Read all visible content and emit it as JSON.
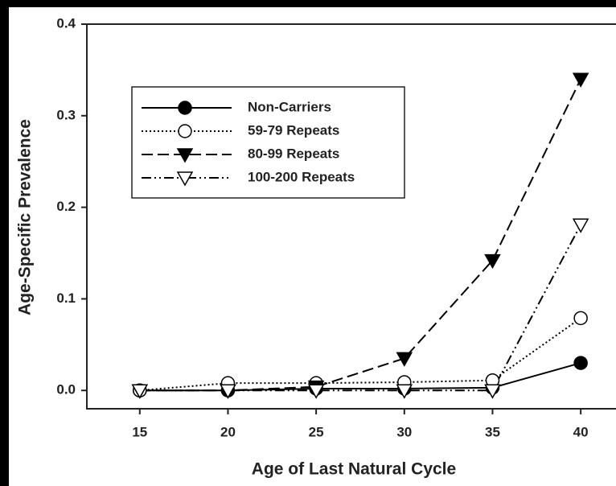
{
  "chart_data": {
    "type": "line",
    "xlabel": "Age of Last Natural Cycle",
    "ylabel": "Age-Specific Prevalence",
    "x": [
      15,
      20,
      25,
      30,
      35,
      40
    ],
    "xlim": [
      12,
      42
    ],
    "xticks": [
      15,
      20,
      25,
      30,
      35,
      40
    ],
    "ylim": [
      -0.02,
      0.4
    ],
    "yticks": [
      {
        "value": 0,
        "label": "0.0"
      },
      0.1,
      0.2,
      0.3,
      0.4
    ],
    "legend": "upper left",
    "series": [
      {
        "name": "Non-Carriers",
        "color": "#000000",
        "marker": "circle",
        "filled": true,
        "dash": "solid",
        "values": [
          0,
          0,
          0.002,
          0.002,
          0.003,
          0.03
        ]
      },
      {
        "name": "59-79 Repeats",
        "color": "#000000",
        "marker": "circle",
        "filled": false,
        "dash": "dotted",
        "values": [
          0,
          0.008,
          0.008,
          0.009,
          0.011,
          0.079
        ]
      },
      {
        "name": "80-99 Repeats",
        "color": "#000000",
        "marker": "triangle-down",
        "filled": true,
        "dash": "dashed",
        "values": [
          0,
          0,
          0.004,
          0.035,
          0.142,
          0.34
        ]
      },
      {
        "name": "100-200 Repeats",
        "color": "#000000",
        "marker": "triangle-down",
        "filled": false,
        "dash": "dashdotdot",
        "values": [
          0,
          0,
          0,
          0,
          0,
          0.181
        ]
      }
    ]
  }
}
